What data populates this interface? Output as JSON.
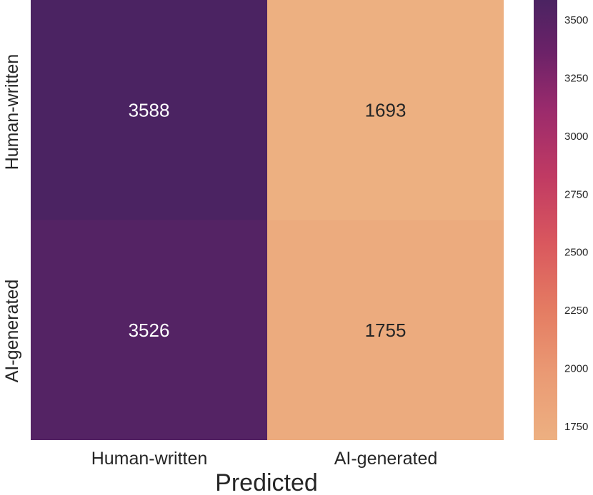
{
  "chart_data": {
    "type": "heatmap",
    "rows": [
      "Human-written",
      "AI-generated"
    ],
    "columns": [
      "Human-written",
      "AI-generated"
    ],
    "values": [
      [
        3588,
        1693
      ],
      [
        3526,
        1755
      ]
    ],
    "xlabel": "Predicted",
    "ylabel": "",
    "colormap": "flare",
    "colorbar": {
      "range": [
        1693,
        3588
      ],
      "ticks": [
        1750,
        2000,
        2250,
        2500,
        2750,
        3000,
        3250,
        3500
      ]
    },
    "colors": {
      "low": "#edb081",
      "high": "#4b2362",
      "text_dark": "#262626",
      "text_light": "#ffffff"
    }
  }
}
